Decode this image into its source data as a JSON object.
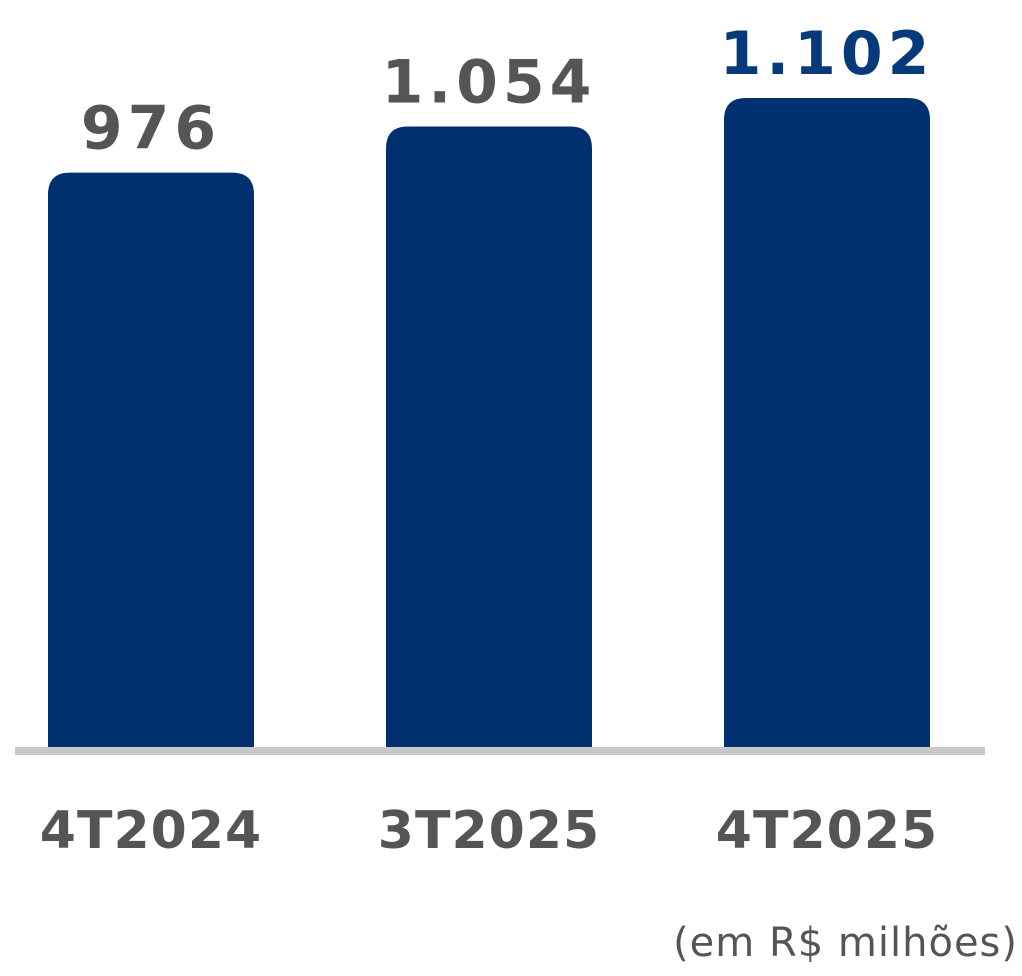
{
  "chart_data": {
    "type": "bar",
    "categories": [
      "4T2024",
      "3T2025",
      "4T2025"
    ],
    "values": [
      976,
      1054,
      1102
    ],
    "value_labels": [
      "976",
      "1.054",
      "1.102"
    ],
    "ylim": [
      0,
      1102
    ],
    "grid": false,
    "legend": "none",
    "bar_color": "#00306F",
    "value_label_colors": [
      "#555555",
      "#555555",
      "#063A7A"
    ],
    "category_label_color": "#555555",
    "baseline_color": "#C8C8C8"
  },
  "note": "(em R$ milhões)"
}
